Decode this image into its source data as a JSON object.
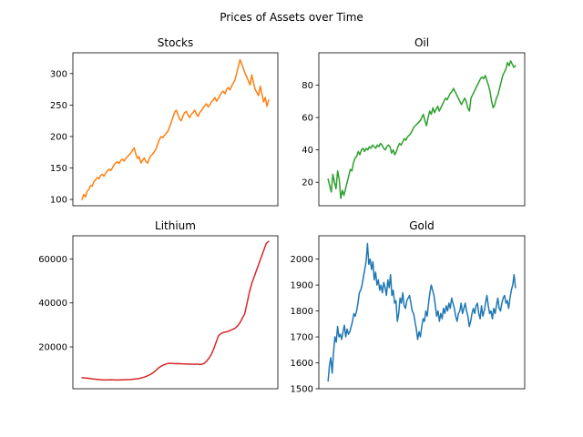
{
  "figure": {
    "title": "Prices of Assets over Time"
  },
  "chart_data": [
    {
      "type": "line",
      "title": "Stocks",
      "color": "#ff7f0e",
      "xticks_visible": false,
      "ylim": [
        90,
        333
      ],
      "yticks": [
        100,
        150,
        200,
        250,
        300
      ],
      "series": [
        {
          "values": [
            100,
            108,
            104,
            113,
            116,
            122,
            121,
            128,
            131,
            135,
            133,
            138,
            140,
            137,
            142,
            145,
            148,
            146,
            150,
            155,
            158,
            160,
            157,
            162,
            164,
            161,
            165,
            168,
            171,
            174,
            178,
            182,
            172,
            165,
            168,
            158,
            162,
            166,
            160,
            158,
            165,
            170,
            172,
            176,
            180,
            188,
            195,
            200,
            198,
            202,
            205,
            208,
            215,
            222,
            230,
            238,
            242,
            235,
            228,
            225,
            232,
            238,
            240,
            234,
            230,
            235,
            238,
            242,
            236,
            232,
            238,
            241,
            245,
            249,
            252,
            247,
            250,
            255,
            258,
            262,
            256,
            260,
            265,
            270,
            272,
            268,
            275,
            278,
            274,
            280,
            285,
            290,
            300,
            312,
            322,
            315,
            308,
            300,
            295,
            288,
            282,
            298,
            285,
            275,
            270,
            265,
            280,
            268,
            255,
            262,
            248,
            258
          ]
        }
      ]
    },
    {
      "type": "line",
      "title": "Oil",
      "color": "#2ca02c",
      "xticks_visible": false,
      "ylim": [
        5.5,
        100
      ],
      "yticks": [
        20,
        40,
        60,
        80
      ],
      "series": [
        {
          "values": [
            22,
            18,
            14,
            25,
            20,
            16,
            27,
            22,
            10,
            15,
            12,
            16,
            20,
            24,
            28,
            27,
            32,
            35,
            36,
            39,
            37,
            40,
            41,
            39,
            41,
            40,
            42,
            41,
            43,
            42,
            41,
            43,
            42,
            44,
            43,
            41,
            40,
            42,
            43,
            42,
            38,
            40,
            37,
            39,
            42,
            44,
            43,
            45,
            47,
            46,
            48,
            49,
            50,
            52,
            54,
            55,
            56,
            57,
            58,
            60,
            62,
            58,
            55,
            60,
            64,
            62,
            66,
            63,
            65,
            67,
            64,
            66,
            68,
            70,
            72,
            71,
            73,
            75,
            76,
            78,
            76,
            74,
            72,
            70,
            68,
            70,
            72,
            70,
            66,
            64,
            72,
            74,
            76,
            78,
            80,
            82,
            84,
            85,
            84,
            86,
            83,
            80,
            76,
            70,
            66,
            68,
            72,
            74,
            78,
            82,
            86,
            88,
            90,
            94,
            92,
            95,
            93,
            91,
            92
          ]
        }
      ]
    },
    {
      "type": "line",
      "title": "Lithium",
      "color": "#d62728",
      "xticks_visible": false,
      "ylim": [
        1000,
        70500
      ],
      "yticks": [
        20000,
        40000,
        60000
      ],
      "series": [
        {
          "values": [
            6000,
            5900,
            5800,
            5700,
            5500,
            5400,
            5300,
            5200,
            5100,
            5050,
            5000,
            5050,
            5100,
            5050,
            5000,
            5000,
            5050,
            5100,
            5100,
            5150,
            5200,
            5300,
            5400,
            5500,
            5700,
            6000,
            6300,
            6700,
            7200,
            7800,
            8500,
            9500,
            10500,
            11200,
            11800,
            12200,
            12500,
            12600,
            12500,
            12400,
            12450,
            12400,
            12300,
            12250,
            12200,
            12200,
            12150,
            12100,
            12200,
            12000,
            12100,
            12500,
            13500,
            14800,
            16500,
            19000,
            22000,
            25000,
            26000,
            26500,
            26800,
            27000,
            27500,
            28000,
            28500,
            29500,
            31000,
            33000,
            35000,
            40000,
            45000,
            49000,
            52000,
            55000,
            58000,
            61000,
            64000,
            67000,
            68000
          ]
        }
      ]
    },
    {
      "type": "line",
      "title": "Gold",
      "color": "#1f77b4",
      "xticks_visible": false,
      "ylim": [
        1500,
        2090
      ],
      "yticks": [
        1500,
        1600,
        1700,
        1800,
        1900,
        2000
      ],
      "series": [
        {
          "values": [
            1530,
            1590,
            1620,
            1560,
            1640,
            1700,
            1680,
            1740,
            1700,
            1710,
            1690,
            1720,
            1745,
            1700,
            1730,
            1710,
            1720,
            1740,
            1760,
            1790,
            1780,
            1800,
            1830,
            1870,
            1880,
            1900,
            1930,
            1960,
            1990,
            2060,
            1980,
            2000,
            1960,
            1990,
            1920,
            1950,
            1900,
            1920,
            1880,
            1900,
            1870,
            1910,
            1890,
            1860,
            1920,
            1890,
            1940,
            1860,
            1880,
            1830,
            1840,
            1760,
            1790,
            1850,
            1830,
            1870,
            1820,
            1810,
            1840,
            1850,
            1860,
            1830,
            1800,
            1790,
            1760,
            1730,
            1690,
            1720,
            1700,
            1740,
            1770,
            1760,
            1800,
            1780,
            1830,
            1870,
            1900,
            1880,
            1860,
            1820,
            1780,
            1800,
            1760,
            1790,
            1770,
            1810,
            1790,
            1820,
            1800,
            1830,
            1810,
            1850,
            1830,
            1810,
            1780,
            1760,
            1790,
            1800,
            1830,
            1790,
            1810,
            1830,
            1800,
            1780,
            1740,
            1760,
            1790,
            1810,
            1790,
            1820,
            1830,
            1790,
            1770,
            1820,
            1780,
            1800,
            1830,
            1860,
            1820,
            1790,
            1800,
            1770,
            1810,
            1790,
            1820,
            1850,
            1810,
            1800,
            1830,
            1850,
            1860,
            1830,
            1840,
            1810,
            1850,
            1880,
            1900,
            1940,
            1890
          ]
        }
      ]
    }
  ]
}
